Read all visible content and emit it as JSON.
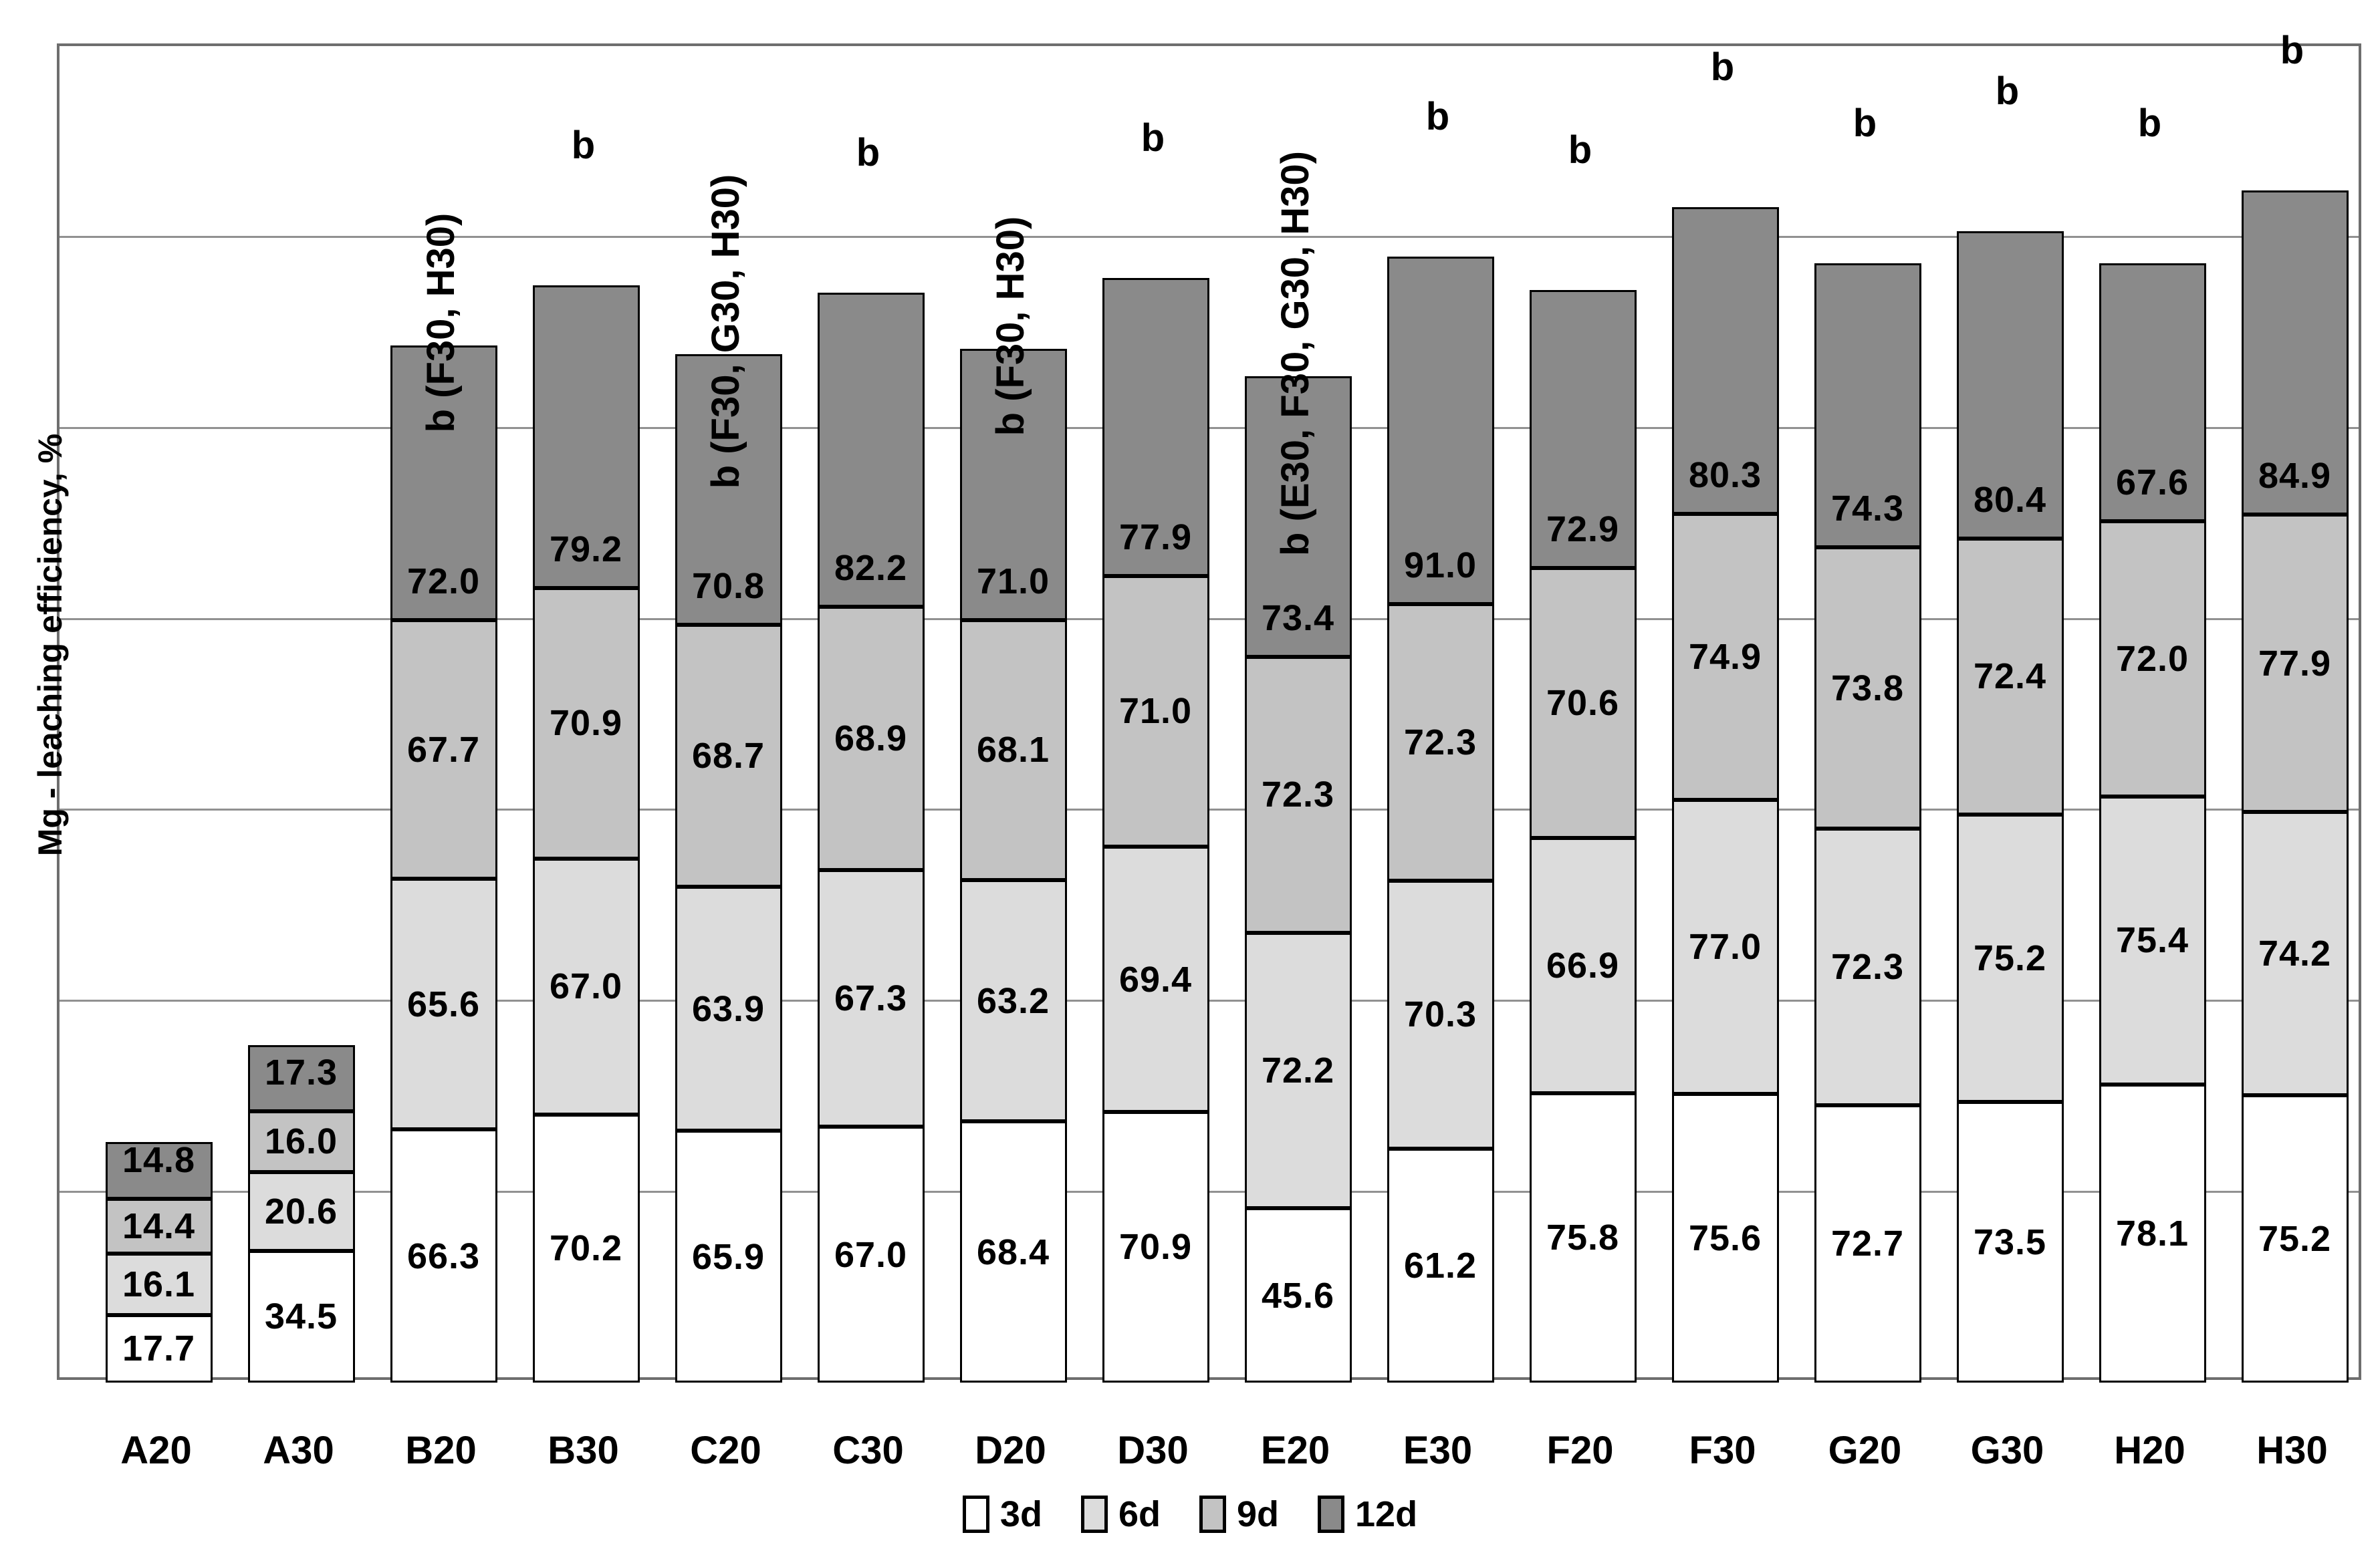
{
  "chart_data": {
    "type": "bar",
    "stacked": true,
    "title": "",
    "xlabel": "",
    "ylabel": "Mg - leaching efficiency, %",
    "ylim": [
      0,
      350
    ],
    "gridline_step": 50,
    "grid": true,
    "legend_position": "bottom",
    "categories": [
      "A20",
      "A30",
      "B20",
      "B30",
      "C20",
      "C30",
      "D20",
      "D30",
      "E20",
      "E30",
      "F20",
      "F30",
      "G20",
      "G30",
      "H20",
      "H30"
    ],
    "series": [
      {
        "name": "3d",
        "color": "#ffffff",
        "values": [
          17.7,
          34.5,
          66.3,
          70.2,
          65.9,
          67.0,
          68.4,
          70.9,
          45.6,
          61.2,
          75.8,
          75.6,
          72.7,
          73.5,
          78.1,
          75.2
        ]
      },
      {
        "name": "6d",
        "color": "#dcdcdc",
        "values": [
          16.1,
          20.6,
          65.6,
          67.0,
          63.9,
          67.3,
          63.2,
          69.4,
          72.2,
          70.3,
          66.9,
          77.0,
          72.3,
          75.2,
          75.4,
          74.2
        ]
      },
      {
        "name": "9d",
        "color": "#c3c3c3",
        "values": [
          14.4,
          16.0,
          67.7,
          70.9,
          68.7,
          68.9,
          68.1,
          71.0,
          72.3,
          72.3,
          70.6,
          74.9,
          73.8,
          72.4,
          72.0,
          77.9
        ]
      },
      {
        "name": "12d",
        "color": "#8a8a8a",
        "values": [
          14.8,
          17.3,
          72.0,
          79.2,
          70.8,
          82.2,
          71.0,
          77.9,
          73.4,
          91.0,
          72.9,
          80.3,
          74.3,
          80.4,
          67.6,
          84.9
        ]
      }
    ],
    "annotations": [
      {
        "category": "B20",
        "text": "b (F30, H30)",
        "rotated": true
      },
      {
        "category": "B30",
        "text": "b",
        "rotated": false
      },
      {
        "category": "C20",
        "text": "b (F30, G30, H30)",
        "rotated": true
      },
      {
        "category": "C30",
        "text": "b",
        "rotated": false
      },
      {
        "category": "D20",
        "text": "b (F30, H30)",
        "rotated": true
      },
      {
        "category": "D30",
        "text": "b",
        "rotated": false
      },
      {
        "category": "E20",
        "text": "b (E30, F30, G30, H30)",
        "rotated": true
      },
      {
        "category": "E30",
        "text": "b",
        "rotated": false
      },
      {
        "category": "F20",
        "text": "b",
        "rotated": false
      },
      {
        "category": "F30",
        "text": "b",
        "rotated": false
      },
      {
        "category": "G20",
        "text": "b",
        "rotated": false
      },
      {
        "category": "G30",
        "text": "b",
        "rotated": false
      },
      {
        "category": "H20",
        "text": "b",
        "rotated": false
      },
      {
        "category": "H30",
        "text": "b",
        "rotated": false
      }
    ]
  }
}
